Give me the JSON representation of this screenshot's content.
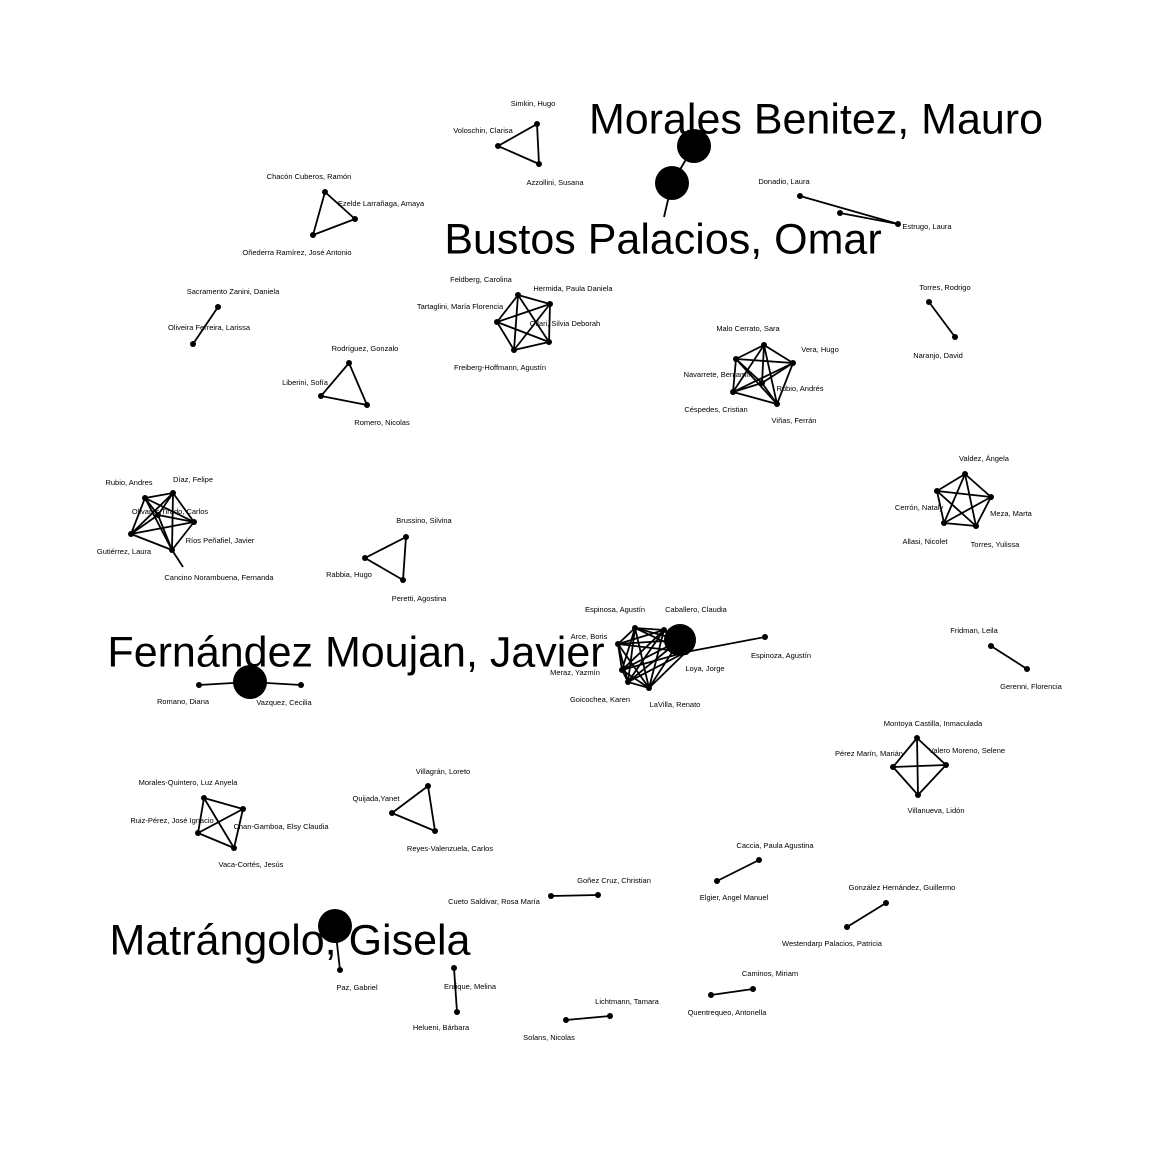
{
  "network": {
    "nodes": [
      {
        "id": "simkin",
        "label": "Simkin, Hugo"
      },
      {
        "id": "voloschin",
        "label": "Voloschin, Clarisa"
      },
      {
        "id": "azzollini",
        "label": "Azzollini, Susana"
      },
      {
        "id": "morales_benitez",
        "label": "Morales Benitez, Mauro",
        "highlight": true
      },
      {
        "id": "bustos_palacios",
        "label": "Bustos Palacios, Omar",
        "highlight": true
      },
      {
        "id": "donadio",
        "label": "Donadio, Laura"
      },
      {
        "id": "estrugo",
        "label": "Estrugo, Laura"
      },
      {
        "id": "chacon",
        "label": "Chacón Cuberos, Ramón"
      },
      {
        "id": "ezeldel",
        "label": "Ezelde Larrañaga, Amaya"
      },
      {
        "id": "onederra",
        "label": "Oñederra Ramírez, José Antonio"
      },
      {
        "id": "sacramento",
        "label": "Sacramento Zanini, Daniela"
      },
      {
        "id": "oliveira",
        "label": "Oliveira Ferreira, Larissa"
      },
      {
        "id": "feldberg",
        "label": "Feldberg, Carolina"
      },
      {
        "id": "hermida",
        "label": "Hermida, Paula Daniela"
      },
      {
        "id": "tartaglini",
        "label": "Tartaglini, María Florencia"
      },
      {
        "id": "ollari",
        "label": "Ollari, Silvia Deborah"
      },
      {
        "id": "freiberg",
        "label": "Freiberg-Hoffmann, Agustín"
      },
      {
        "id": "torres_r",
        "label": "Torres, Rodrigo"
      },
      {
        "id": "naranjo",
        "label": "Naranjo, David"
      },
      {
        "id": "rodriguez_g",
        "label": "Rodríguez, Gonzalo"
      },
      {
        "id": "liberini",
        "label": "Liberini, Sofía"
      },
      {
        "id": "romero_n",
        "label": "Romero, Nicolas"
      },
      {
        "id": "malo",
        "label": "Malo Cerrato, Sara"
      },
      {
        "id": "vera",
        "label": "Vera, Hugo"
      },
      {
        "id": "navarrete",
        "label": "Navarrete, Benjamín"
      },
      {
        "id": "rubio_a2",
        "label": "Rubio, Andrés"
      },
      {
        "id": "cespedes",
        "label": "Céspedes, Cristian"
      },
      {
        "id": "vinas",
        "label": "Viñas, Ferrán"
      },
      {
        "id": "rubio_a1",
        "label": "Rubio, Andres"
      },
      {
        "id": "diaz",
        "label": "Díaz, Felipe"
      },
      {
        "id": "olivares",
        "label": "Olivares Tirado, Carlos"
      },
      {
        "id": "rios",
        "label": "Ríos Peñafiel, Javier"
      },
      {
        "id": "gutierrez",
        "label": "Gutiérrez, Laura"
      },
      {
        "id": "cancino",
        "label": "Cancino Norambuena, Fernanda"
      },
      {
        "id": "valdez",
        "label": "Valdez, Ángela"
      },
      {
        "id": "cerron",
        "label": "Cerrón, Nataly"
      },
      {
        "id": "meza",
        "label": "Meza, Marta"
      },
      {
        "id": "allasi",
        "label": "Allasi, Nicolet"
      },
      {
        "id": "torres_y",
        "label": "Torres, Yulissa"
      },
      {
        "id": "brussino",
        "label": "Brussino, Silvina"
      },
      {
        "id": "rabbia",
        "label": "Rabbia, Hugo"
      },
      {
        "id": "peretti",
        "label": "Peretti, Agostina"
      },
      {
        "id": "espinosa_1",
        "label": "Espinosa, Agustín"
      },
      {
        "id": "caballero",
        "label": "Caballero, Claudia"
      },
      {
        "id": "arce",
        "label": "Arce, Boris"
      },
      {
        "id": "espinoza_2",
        "label": "Espinoza, Agustín"
      },
      {
        "id": "meraz",
        "label": "Meraz, Yazmín"
      },
      {
        "id": "loya",
        "label": "Loya, Jorge"
      },
      {
        "id": "goicochea",
        "label": "Goicochea, Karen"
      },
      {
        "id": "lavilla",
        "label": "LaVilla, Renato"
      },
      {
        "id": "c_hub",
        "label": ""
      },
      {
        "id": "fernandez_moujan",
        "label": "Fernández Moujan, Javier",
        "highlight": true
      },
      {
        "id": "romano",
        "label": "Romano, Diana"
      },
      {
        "id": "vazquez",
        "label": "Vazquez, Cecilia"
      },
      {
        "id": "fridman",
        "label": "Fridman, Leila"
      },
      {
        "id": "gerenni",
        "label": "Gerenni, Florencia"
      },
      {
        "id": "montoya",
        "label": "Montoya Castilla, Inmaculada"
      },
      {
        "id": "perez_marin",
        "label": "Pérez Marín, Marián"
      },
      {
        "id": "valero",
        "label": "Valero Moreno, Selene"
      },
      {
        "id": "villanueva",
        "label": "Villanueva, Lidón"
      },
      {
        "id": "morales_q",
        "label": "Morales-Quintero, Luz Anyela"
      },
      {
        "id": "ruiz_perez",
        "label": "Ruiz-Pérez, José Ignacio"
      },
      {
        "id": "chan",
        "label": "Chan-Gamboa, Elsy Claudia"
      },
      {
        "id": "vaca",
        "label": "Vaca-Cortés, Jesús"
      },
      {
        "id": "villagran",
        "label": "Villagrán, Loreto"
      },
      {
        "id": "quijada",
        "label": "Quijada,Yanet"
      },
      {
        "id": "reyes",
        "label": "Reyes-Valenzuela, Carlos"
      },
      {
        "id": "caccia",
        "label": "Caccia, Paula Agustina"
      },
      {
        "id": "elgier",
        "label": "Elgier, Angel Manuel"
      },
      {
        "id": "gonez",
        "label": "Goñez Cruz, Christian"
      },
      {
        "id": "cueto",
        "label": "Cueto Saldivar, Rosa María"
      },
      {
        "id": "gonzalez_h",
        "label": "González Hernández, Guillermo"
      },
      {
        "id": "westendarp",
        "label": "Westendarp Palacios, Patricia"
      },
      {
        "id": "matrangolo",
        "label": "Matrángolo, Gisela",
        "highlight": true
      },
      {
        "id": "paz",
        "label": "Paz, Gabriel"
      },
      {
        "id": "enrique",
        "label": "Enrique, Melina"
      },
      {
        "id": "helueni",
        "label": "Helueni, Bárbara"
      },
      {
        "id": "caminos",
        "label": "Caminos, Miriam"
      },
      {
        "id": "quentrequeo",
        "label": "Quentrequeo, Antonella"
      },
      {
        "id": "lichtmann",
        "label": "Lichtmann, Tamara"
      },
      {
        "id": "solans",
        "label": "Solans, Nicolas"
      }
    ],
    "edges": [
      [
        "simkin",
        "voloschin"
      ],
      [
        "simkin",
        "azzollini"
      ],
      [
        "voloschin",
        "azzollini"
      ],
      [
        "morales_benitez",
        "bustos_palacios"
      ],
      [
        "donadio",
        "estrugo"
      ],
      [
        "chacon",
        "ezeldel"
      ],
      [
        "chacon",
        "onederra"
      ],
      [
        "ezeldel",
        "onederra"
      ],
      [
        "sacramento",
        "oliveira"
      ],
      [
        "feldberg",
        "hermida"
      ],
      [
        "feldberg",
        "tartaglini"
      ],
      [
        "feldberg",
        "ollari"
      ],
      [
        "feldberg",
        "freiberg"
      ],
      [
        "hermida",
        "tartaglini"
      ],
      [
        "hermida",
        "ollari"
      ],
      [
        "hermida",
        "freiberg"
      ],
      [
        "tartaglini",
        "ollari"
      ],
      [
        "tartaglini",
        "freiberg"
      ],
      [
        "ollari",
        "freiberg"
      ],
      [
        "torres_r",
        "naranjo"
      ],
      [
        "rodriguez_g",
        "liberini"
      ],
      [
        "rodriguez_g",
        "romero_n"
      ],
      [
        "liberini",
        "romero_n"
      ],
      [
        "malo",
        "vera"
      ],
      [
        "malo",
        "navarrete"
      ],
      [
        "malo",
        "rubio_a2"
      ],
      [
        "malo",
        "cespedes"
      ],
      [
        "malo",
        "vinas"
      ],
      [
        "vera",
        "navarrete"
      ],
      [
        "vera",
        "rubio_a2"
      ],
      [
        "vera",
        "cespedes"
      ],
      [
        "vera",
        "vinas"
      ],
      [
        "navarrete",
        "rubio_a2"
      ],
      [
        "navarrete",
        "cespedes"
      ],
      [
        "navarrete",
        "vinas"
      ],
      [
        "rubio_a2",
        "cespedes"
      ],
      [
        "rubio_a2",
        "vinas"
      ],
      [
        "cespedes",
        "vinas"
      ],
      [
        "rubio_a1",
        "diaz"
      ],
      [
        "rubio_a1",
        "olivares"
      ],
      [
        "rubio_a1",
        "rios"
      ],
      [
        "rubio_a1",
        "gutierrez"
      ],
      [
        "rubio_a1",
        "cancino"
      ],
      [
        "diaz",
        "olivares"
      ],
      [
        "diaz",
        "rios"
      ],
      [
        "diaz",
        "gutierrez"
      ],
      [
        "diaz",
        "cancino"
      ],
      [
        "olivares",
        "rios"
      ],
      [
        "olivares",
        "gutierrez"
      ],
      [
        "olivares",
        "cancino"
      ],
      [
        "rios",
        "gutierrez"
      ],
      [
        "rios",
        "cancino"
      ],
      [
        "gutierrez",
        "cancino"
      ],
      [
        "valdez",
        "cerron"
      ],
      [
        "valdez",
        "meza"
      ],
      [
        "valdez",
        "allasi"
      ],
      [
        "valdez",
        "torres_y"
      ],
      [
        "cerron",
        "meza"
      ],
      [
        "cerron",
        "allasi"
      ],
      [
        "cerron",
        "torres_y"
      ],
      [
        "meza",
        "allasi"
      ],
      [
        "meza",
        "torres_y"
      ],
      [
        "allasi",
        "torres_y"
      ],
      [
        "brussino",
        "rabbia"
      ],
      [
        "brussino",
        "peretti"
      ],
      [
        "rabbia",
        "peretti"
      ],
      [
        "espinosa_1",
        "caballero"
      ],
      [
        "espinosa_1",
        "arce"
      ],
      [
        "espinosa_1",
        "meraz"
      ],
      [
        "espinosa_1",
        "loya"
      ],
      [
        "espinosa_1",
        "goicochea"
      ],
      [
        "espinosa_1",
        "lavilla"
      ],
      [
        "espinosa_1",
        "c_hub"
      ],
      [
        "caballero",
        "arce"
      ],
      [
        "caballero",
        "meraz"
      ],
      [
        "caballero",
        "loya"
      ],
      [
        "caballero",
        "goicochea"
      ],
      [
        "caballero",
        "lavilla"
      ],
      [
        "caballero",
        "c_hub"
      ],
      [
        "arce",
        "meraz"
      ],
      [
        "arce",
        "loya"
      ],
      [
        "arce",
        "goicochea"
      ],
      [
        "arce",
        "lavilla"
      ],
      [
        "arce",
        "c_hub"
      ],
      [
        "meraz",
        "loya"
      ],
      [
        "meraz",
        "goicochea"
      ],
      [
        "meraz",
        "lavilla"
      ],
      [
        "meraz",
        "c_hub"
      ],
      [
        "loya",
        "goicochea"
      ],
      [
        "loya",
        "lavilla"
      ],
      [
        "loya",
        "c_hub"
      ],
      [
        "loya",
        "espinoza_2"
      ],
      [
        "goicochea",
        "lavilla"
      ],
      [
        "goicochea",
        "c_hub"
      ],
      [
        "lavilla",
        "c_hub"
      ],
      [
        "romano",
        "fernandez_moujan"
      ],
      [
        "fernandez_moujan",
        "vazquez"
      ],
      [
        "fridman",
        "gerenni"
      ],
      [
        "montoya",
        "perez_marin"
      ],
      [
        "montoya",
        "valero"
      ],
      [
        "montoya",
        "villanueva"
      ],
      [
        "perez_marin",
        "valero"
      ],
      [
        "perez_marin",
        "villanueva"
      ],
      [
        "valero",
        "villanueva"
      ],
      [
        "morales_q",
        "ruiz_perez"
      ],
      [
        "morales_q",
        "chan"
      ],
      [
        "morales_q",
        "vaca"
      ],
      [
        "ruiz_perez",
        "chan"
      ],
      [
        "ruiz_perez",
        "vaca"
      ],
      [
        "chan",
        "vaca"
      ],
      [
        "villagran",
        "quijada"
      ],
      [
        "villagran",
        "reyes"
      ],
      [
        "quijada",
        "reyes"
      ],
      [
        "caccia",
        "elgier"
      ],
      [
        "gonez",
        "cueto"
      ],
      [
        "gonzalez_h",
        "westendarp"
      ],
      [
        "matrangolo",
        "paz"
      ],
      [
        "enrique",
        "helueni"
      ],
      [
        "caminos",
        "quentrequeo"
      ],
      [
        "lichtmann",
        "solans"
      ]
    ]
  }
}
